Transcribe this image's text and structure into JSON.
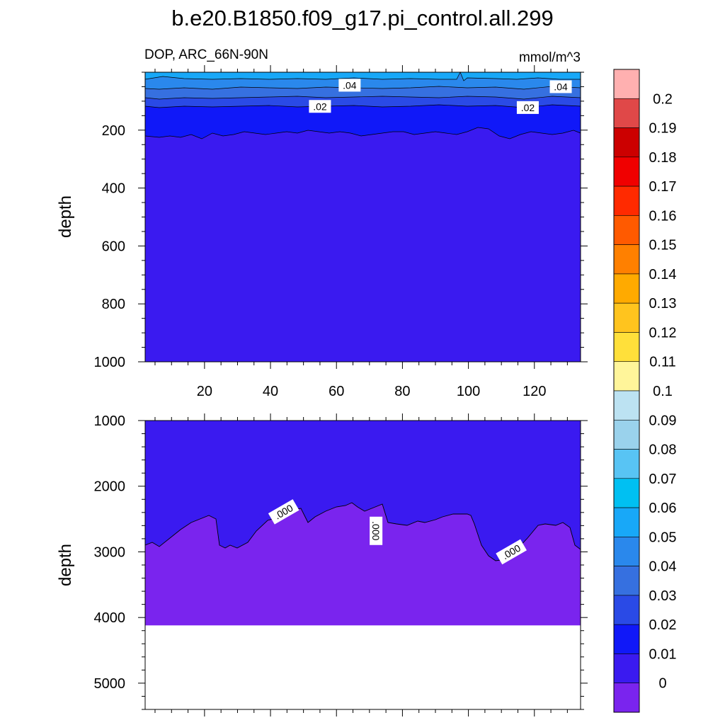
{
  "title": "b.e20.B1850.f09_g17.pi_control.all.299",
  "variable_label": "DOP, ARC_66N-90N",
  "units_label": "mmol/m^3",
  "chart_data": [
    {
      "type": "heatmap",
      "panel": "upper",
      "ylabel": "depth",
      "xlim": [
        2,
        134
      ],
      "ylim": [
        1000,
        0
      ],
      "x_ticks": [
        "20",
        "40",
        "60",
        "80",
        "100",
        "120"
      ],
      "y_ticks": [
        "200",
        "400",
        "600",
        "800",
        "1000"
      ],
      "contour_labels": [
        {
          "text": ".04",
          "x": 64,
          "depth": 45
        },
        {
          "text": ".04",
          "x": 128,
          "depth": 50
        },
        {
          "text": ".02",
          "x": 55,
          "depth": 118
        },
        {
          "text": ".02",
          "x": 118,
          "depth": 122
        }
      ]
    },
    {
      "type": "heatmap",
      "panel": "lower",
      "ylabel": "depth",
      "xlim": [
        2,
        134
      ],
      "ylim": [
        5400,
        1000
      ],
      "x_ticks": [],
      "y_ticks": [
        "1000",
        "2000",
        "3000",
        "4000",
        "5000"
      ],
      "data_bottom_depth": 4120,
      "contour_labels": [
        {
          "text": ".000",
          "x": 44,
          "depth": 2390
        },
        {
          "text": ".000",
          "x": 72,
          "depth": 2680
        },
        {
          "text": ".000",
          "x": 113,
          "depth": 3000
        }
      ]
    }
  ],
  "colorbar": {
    "colors": [
      "#ffb0b0",
      "#e04848",
      "#cc0000",
      "#f00000",
      "#ff2a00",
      "#ff5a00",
      "#ff8000",
      "#ffaa00",
      "#ffc41e",
      "#ffe03a",
      "#fff59a",
      "#bce2f2",
      "#9ad2ec",
      "#58c4f4",
      "#00c0f2",
      "#18a8f8",
      "#2a88ec",
      "#3670e0",
      "#2a4ae6",
      "#1018f8",
      "#3a1af0",
      "#7a24ee"
    ],
    "labels": [
      "0.2",
      "0.19",
      "0.18",
      "0.17",
      "0.16",
      "0.15",
      "0.14",
      "0.13",
      "0.12",
      "0.11",
      "0.1",
      "0.09",
      "0.08",
      "0.07",
      "0.06",
      "0.05",
      "0.04",
      "0.03",
      "0.02",
      "0.01",
      "0"
    ]
  }
}
